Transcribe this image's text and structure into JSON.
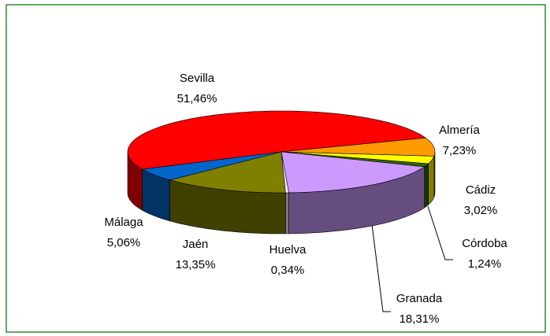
{
  "chart_data": {
    "type": "pie",
    "categories": [
      "Sevilla",
      "Almería",
      "Cádiz",
      "Córdoba",
      "Granada",
      "Huelva",
      "Jaén",
      "Málaga"
    ],
    "values": [
      51.46,
      7.23,
      3.02,
      1.24,
      18.31,
      0.34,
      13.35,
      5.06
    ],
    "value_labels": [
      "51,46%",
      "7,23%",
      "3,02%",
      "1,24%",
      "18,31%",
      "0,34%",
      "13,35%",
      "5,06%"
    ],
    "colors": [
      "#ff0000",
      "#ff9900",
      "#ffff00",
      "#336600",
      "#cc99ff",
      "#eeeeff",
      "#808000",
      "#0066cc"
    ]
  }
}
